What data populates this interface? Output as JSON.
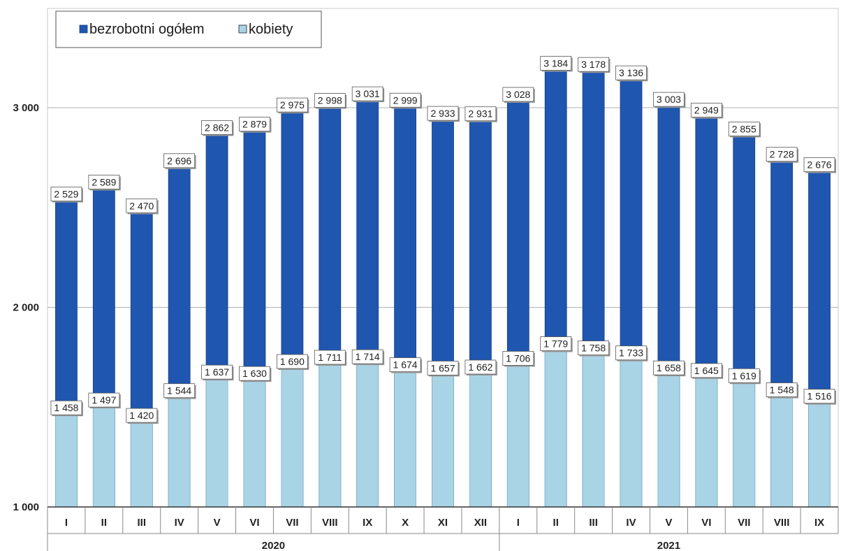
{
  "colors": {
    "total": "#1f56b0",
    "women": "#a9d4e6",
    "grid": "#b0b0b0",
    "axis": "#333333"
  },
  "chart_data": {
    "type": "bar",
    "title": "",
    "xlabel": "",
    "ylabel": "",
    "ylim": [
      1000,
      3400
    ],
    "yticks": [
      1000,
      2000,
      3000
    ],
    "ytick_labels": [
      "1 000",
      "2 000",
      "3 000"
    ],
    "grid": true,
    "legend": "top-left",
    "categories": [
      "I",
      "II",
      "III",
      "IV",
      "V",
      "VI",
      "VII",
      "VIII",
      "IX",
      "X",
      "XI",
      "XII",
      "I",
      "II",
      "III",
      "IV",
      "V",
      "VI",
      "VII",
      "VIII",
      "IX"
    ],
    "groups": [
      {
        "label": "2020",
        "start": 0,
        "end": 11
      },
      {
        "label": "2021",
        "start": 12,
        "end": 20
      }
    ],
    "series": [
      {
        "name": "bezrobotni ogółem",
        "color": "#1f56b0",
        "values": [
          2529,
          2589,
          2470,
          2696,
          2862,
          2879,
          2975,
          2998,
          3031,
          2999,
          2933,
          2931,
          3028,
          3184,
          3178,
          3136,
          3003,
          2949,
          2855,
          2728,
          2676
        ],
        "labels": [
          "2 529",
          "2 589",
          "2 470",
          "2 696",
          "2 862",
          "2 879",
          "2 975",
          "2 998",
          "3 031",
          "2 999",
          "2 933",
          "2 931",
          "3 028",
          "3 184",
          "3 178",
          "3 136",
          "3 003",
          "2 949",
          "2 855",
          "2 728",
          "2 676"
        ]
      },
      {
        "name": "kobiety",
        "color": "#a9d4e6",
        "values": [
          1458,
          1497,
          1420,
          1544,
          1637,
          1630,
          1690,
          1711,
          1714,
          1674,
          1657,
          1662,
          1706,
          1779,
          1758,
          1733,
          1658,
          1645,
          1619,
          1548,
          1516
        ],
        "labels": [
          "1 458",
          "1 497",
          "1 420",
          "1 544",
          "1 637",
          "1 630",
          "1 690",
          "1 711",
          "1 714",
          "1 674",
          "1 657",
          "1 662",
          "1 706",
          "1 779",
          "1 758",
          "1 733",
          "1 658",
          "1 645",
          "1 619",
          "1 548",
          "1 516"
        ]
      }
    ]
  }
}
